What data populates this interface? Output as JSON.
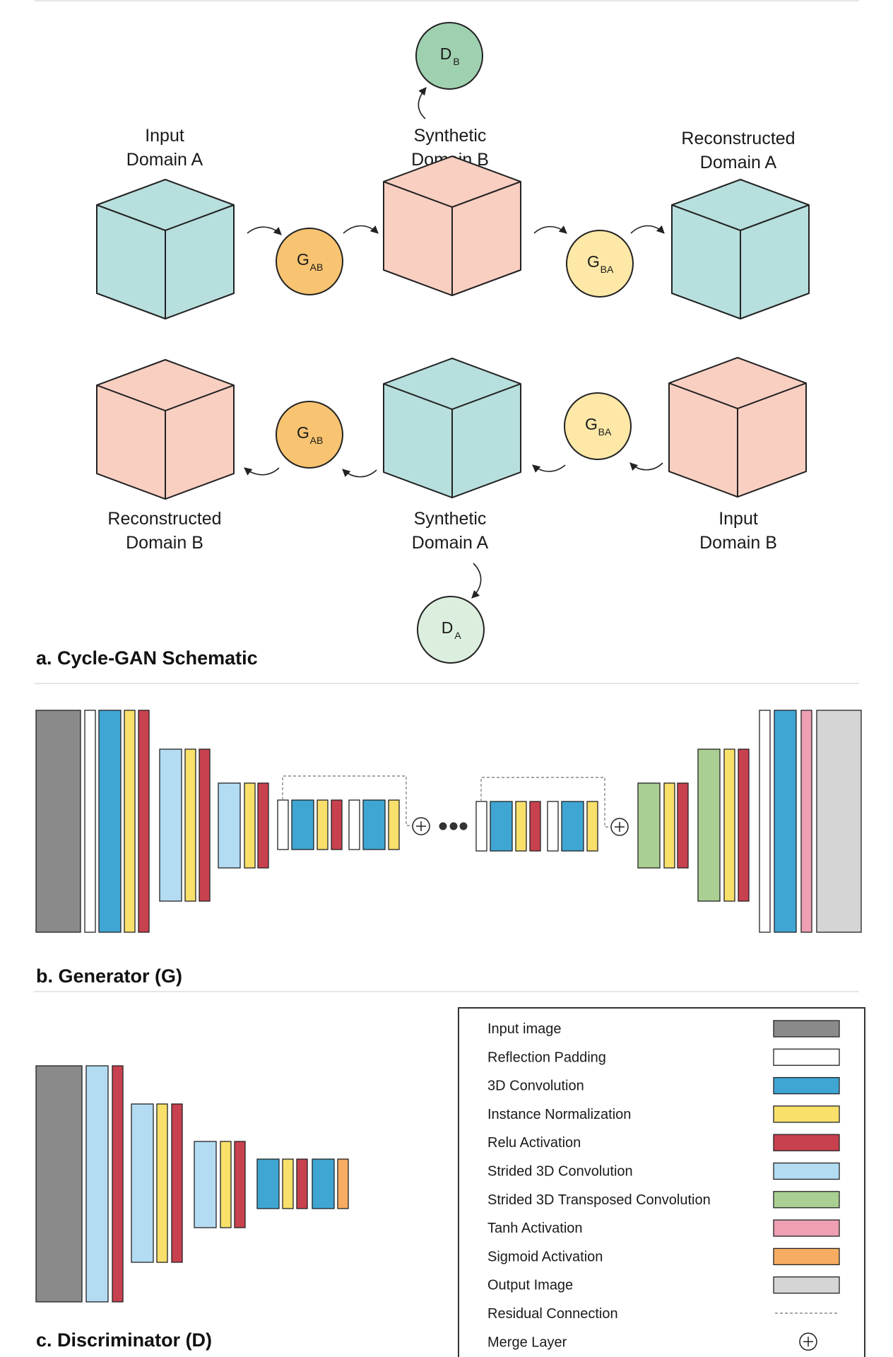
{
  "colors": {
    "domain_a": "#b7dfdd",
    "domain_b": "#f9cfc2",
    "g_ab": "#f8c471",
    "g_ba": "#fde8a8",
    "d_b": "#9fd1b0",
    "d_a": "#dcefdf",
    "input_image": "#8a8a8a",
    "reflection_padding": "#ffffff",
    "conv3d": "#3fa6d4",
    "instance_norm": "#f8e06b",
    "relu": "#c8414f",
    "strided_conv": "#b3dcf3",
    "transposed_conv": "#a9cf92",
    "tanh": "#ee9fb2",
    "sigmoid": "#f6ad62",
    "output_image": "#d5d5d5",
    "stroke": "#222222"
  },
  "schematic": {
    "top_row": {
      "input_label": [
        "Input",
        "Domain A"
      ],
      "synthetic_label": [
        "Synthetic",
        "Domain B"
      ],
      "reconstructed_label": [
        "Reconstructed",
        "Domain A"
      ]
    },
    "bottom_row": {
      "reconstructed_label": [
        "Reconstructed",
        "Domain B"
      ],
      "synthetic_label": [
        "Synthetic",
        "Domain A"
      ],
      "input_label": [
        "Input",
        "Domain B"
      ]
    },
    "nodes": {
      "g_ab": {
        "main": "G",
        "sub": "AB"
      },
      "g_ba": {
        "main": "G",
        "sub": "BA"
      },
      "d_b": {
        "main": "D",
        "sub": "B"
      },
      "d_a": {
        "main": "D",
        "sub": "A"
      }
    },
    "caption": "a. Cycle-GAN Schematic"
  },
  "generator": {
    "caption": "b. Generator (G)"
  },
  "discriminator": {
    "caption": "c. Discriminator (D)"
  },
  "legend": {
    "items": [
      {
        "label": "Input image",
        "key": "input_image"
      },
      {
        "label": "Reflection Padding",
        "key": "reflection_padding"
      },
      {
        "label": "3D Convolution",
        "key": "conv3d"
      },
      {
        "label": "Instance Normalization",
        "key": "instance_norm"
      },
      {
        "label": "Relu Activation",
        "key": "relu"
      },
      {
        "label": "Strided 3D Convolution",
        "key": "strided_conv"
      },
      {
        "label": "Strided 3D Transposed Convolution",
        "key": "transposed_conv"
      },
      {
        "label": "Tanh Activation",
        "key": "tanh"
      },
      {
        "label": "Sigmoid Activation",
        "key": "sigmoid"
      },
      {
        "label": "Output Image",
        "key": "output_image"
      },
      {
        "label": "Residual Connection",
        "key": "residual"
      },
      {
        "label": "Merge Layer",
        "key": "merge"
      }
    ]
  }
}
